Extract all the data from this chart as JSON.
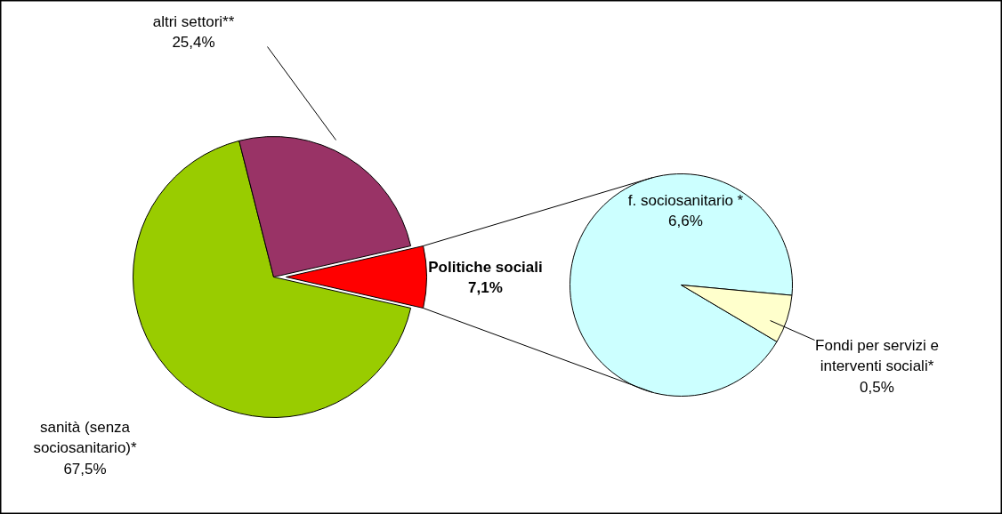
{
  "chart_data": [
    {
      "type": "pie",
      "categories": [
        "sanità (senza sociosanitario)*",
        "altri settori**",
        "Politiche sociali"
      ],
      "values": [
        67.5,
        25.4,
        7.1
      ],
      "value_labels": [
        "67,5%",
        "25,4%",
        "7,1%"
      ],
      "colors": [
        "#99cc00",
        "#993366",
        "#ff0000"
      ]
    },
    {
      "type": "pie",
      "categories": [
        "f. sociosanitario *",
        "Fondi per servizi e interventi sociali*"
      ],
      "values": [
        6.6,
        0.5
      ],
      "value_labels": [
        "6,6%",
        "0,5%"
      ],
      "colors": [
        "#ccffff",
        "#ffffcc"
      ]
    }
  ]
}
